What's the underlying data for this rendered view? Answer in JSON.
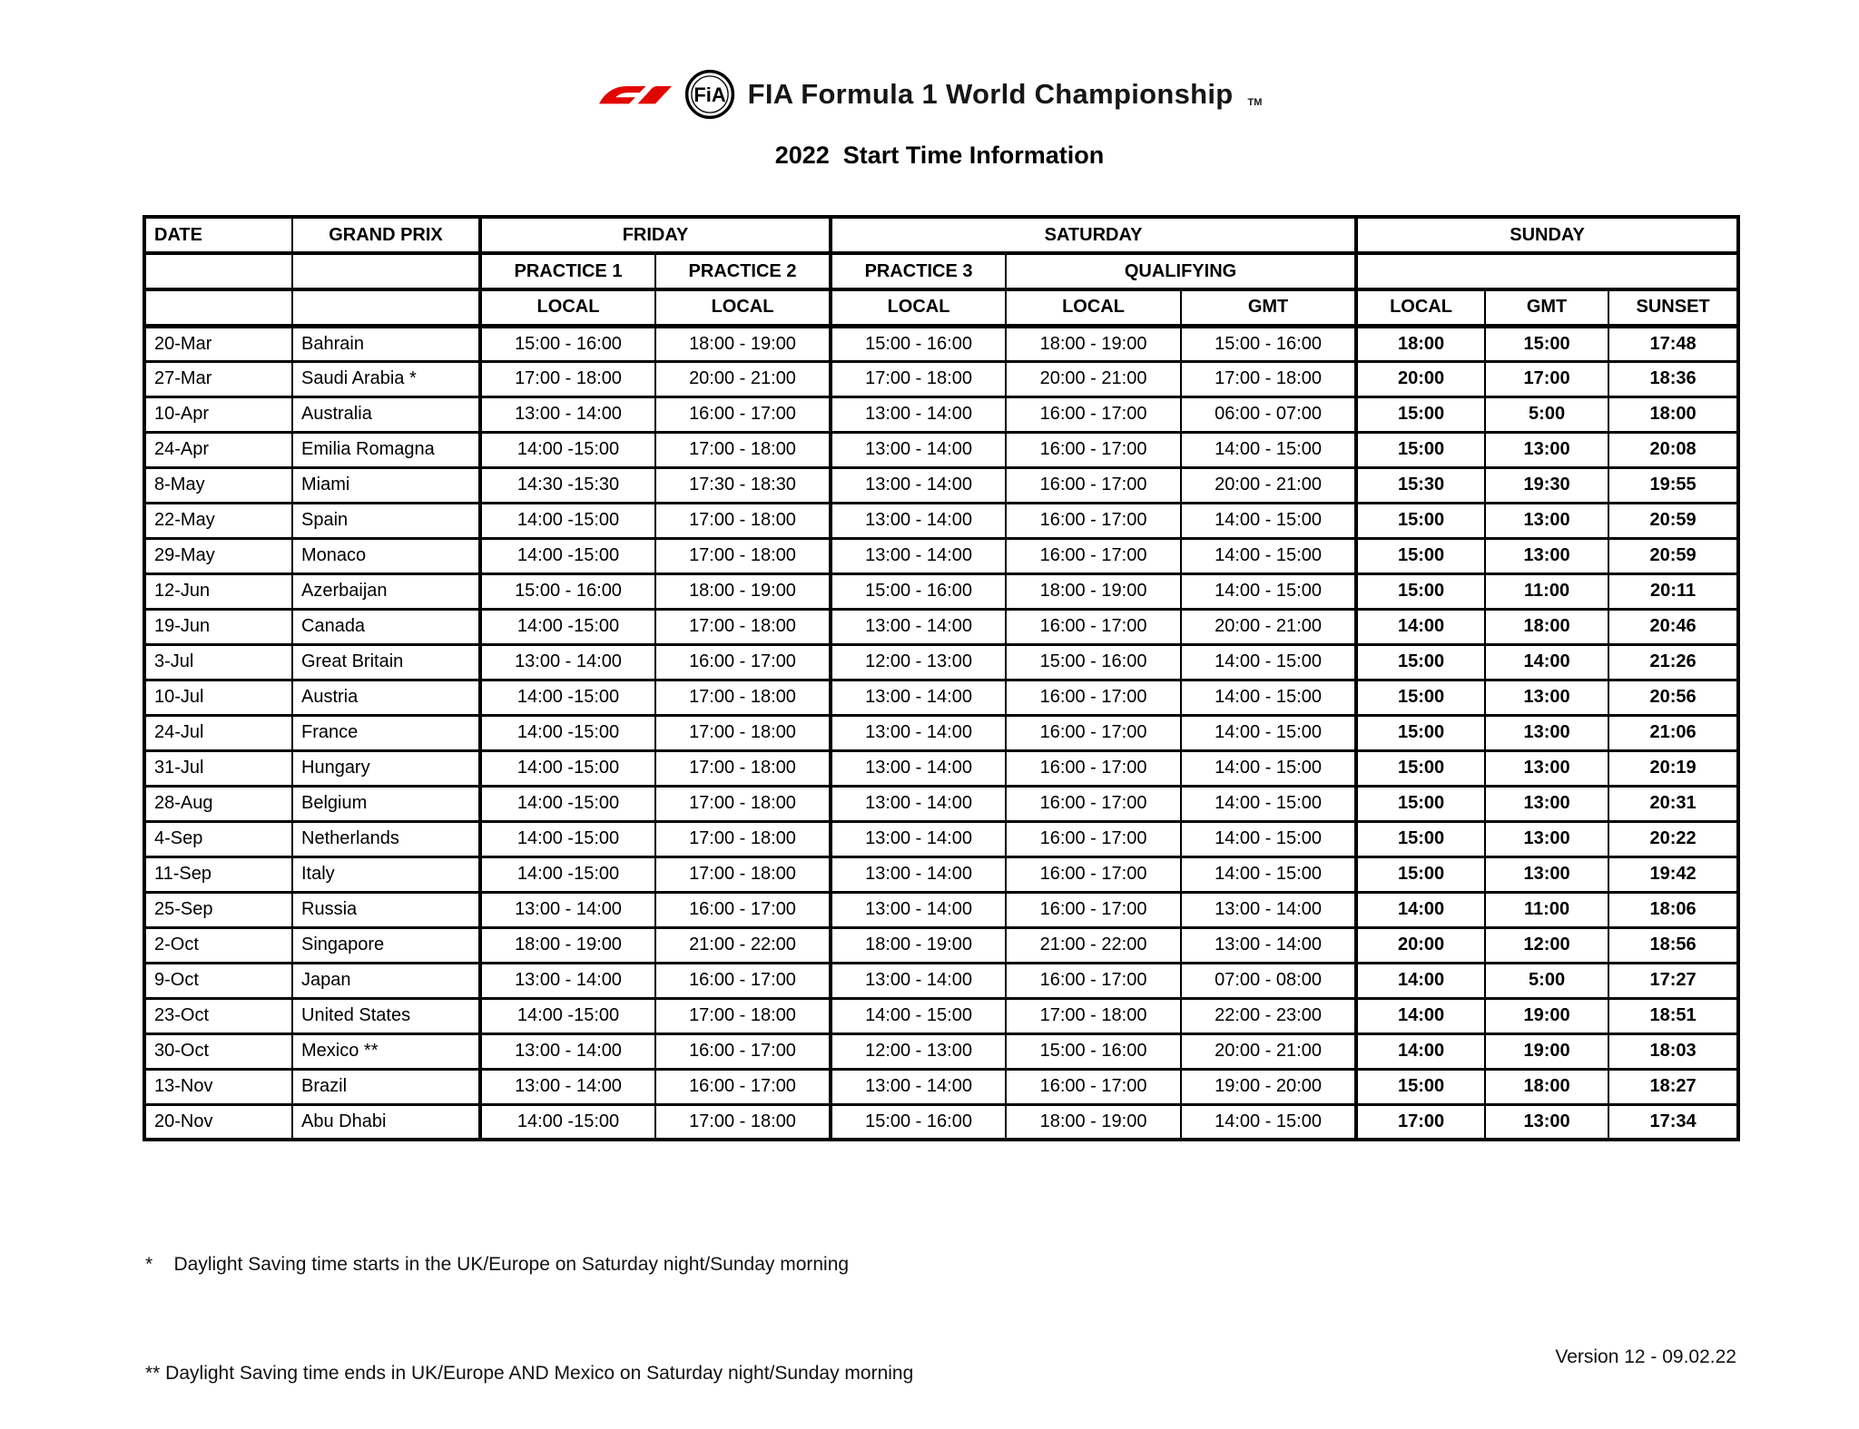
{
  "page": {
    "brand_text": "FIA Formula 1 World Championship",
    "trademark": "TM",
    "title": "2022  Start Time Information",
    "footnotes": [
      "*    Daylight Saving time starts in the UK/Europe on Saturday night/Sunday morning",
      "** Daylight Saving time ends in UK/Europe AND Mexico on Saturday night/Sunday morning"
    ],
    "version": "Version 12 - 09.02.22"
  },
  "icons": {
    "f1_logo": "f1-logo",
    "fia_emblem": "fia-emblem-icon"
  },
  "colors": {
    "f1_red": "#e10600",
    "text": "#000000",
    "background": "#ffffff"
  },
  "table": {
    "header": {
      "date": "DATE",
      "grand_prix": "GRAND PRIX",
      "friday": "FRIDAY",
      "saturday": "SATURDAY",
      "sunday": "SUNDAY",
      "practice1": "PRACTICE 1",
      "practice2": "PRACTICE 2",
      "practice3": "PRACTICE 3",
      "qualifying": "QUALIFYING",
      "local": "LOCAL",
      "gmt": "GMT",
      "sunset": "SUNSET"
    },
    "rows": [
      {
        "date": "20-Mar",
        "gp": "Bahrain",
        "p1": "15:00 - 16:00",
        "p2": "18:00 - 19:00",
        "p3": "15:00 - 16:00",
        "q_local": "18:00 - 19:00",
        "q_gmt": "15:00 - 16:00",
        "sun_local": "18:00",
        "sun_gmt": "15:00",
        "sunset": "17:48"
      },
      {
        "date": "27-Mar",
        "gp": "Saudi Arabia *",
        "p1": "17:00 - 18:00",
        "p2": "20:00 - 21:00",
        "p3": "17:00 - 18:00",
        "q_local": "20:00 - 21:00",
        "q_gmt": "17:00 - 18:00",
        "sun_local": "20:00",
        "sun_gmt": "17:00",
        "sunset": "18:36"
      },
      {
        "date": "10-Apr",
        "gp": "Australia",
        "p1": "13:00 - 14:00",
        "p2": "16:00 - 17:00",
        "p3": "13:00 - 14:00",
        "q_local": "16:00 - 17:00",
        "q_gmt": "06:00 - 07:00",
        "sun_local": "15:00",
        "sun_gmt": "5:00",
        "sunset": "18:00"
      },
      {
        "date": "24-Apr",
        "gp": "Emilia Romagna",
        "p1": "14:00 -15:00",
        "p2": "17:00 - 18:00",
        "p3": "13:00 - 14:00",
        "q_local": "16:00 - 17:00",
        "q_gmt": "14:00 - 15:00",
        "sun_local": "15:00",
        "sun_gmt": "13:00",
        "sunset": "20:08"
      },
      {
        "date": "8-May",
        "gp": "Miami",
        "p1": "14:30 -15:30",
        "p2": "17:30 - 18:30",
        "p3": "13:00 - 14:00",
        "q_local": "16:00 - 17:00",
        "q_gmt": "20:00 - 21:00",
        "sun_local": "15:30",
        "sun_gmt": "19:30",
        "sunset": "19:55"
      },
      {
        "date": "22-May",
        "gp": "Spain",
        "p1": "14:00 -15:00",
        "p2": "17:00 - 18:00",
        "p3": "13:00 - 14:00",
        "q_local": "16:00 - 17:00",
        "q_gmt": "14:00 - 15:00",
        "sun_local": "15:00",
        "sun_gmt": "13:00",
        "sunset": "20:59"
      },
      {
        "date": "29-May",
        "gp": "Monaco",
        "p1": "14:00 -15:00",
        "p2": "17:00 - 18:00",
        "p3": "13:00 - 14:00",
        "q_local": "16:00 - 17:00",
        "q_gmt": "14:00 - 15:00",
        "sun_local": "15:00",
        "sun_gmt": "13:00",
        "sunset": "20:59"
      },
      {
        "date": "12-Jun",
        "gp": "Azerbaijan",
        "p1": "15:00 - 16:00",
        "p2": "18:00 - 19:00",
        "p3": "15:00 - 16:00",
        "q_local": "18:00 - 19:00",
        "q_gmt": "14:00 - 15:00",
        "sun_local": "15:00",
        "sun_gmt": "11:00",
        "sunset": "20:11"
      },
      {
        "date": "19-Jun",
        "gp": "Canada",
        "p1": "14:00 -15:00",
        "p2": "17:00 - 18:00",
        "p3": "13:00 - 14:00",
        "q_local": "16:00 - 17:00",
        "q_gmt": "20:00 - 21:00",
        "sun_local": "14:00",
        "sun_gmt": "18:00",
        "sunset": "20:46"
      },
      {
        "date": "3-Jul",
        "gp": "Great Britain",
        "p1": "13:00 - 14:00",
        "p2": "16:00 - 17:00",
        "p3": "12:00 - 13:00",
        "q_local": "15:00 - 16:00",
        "q_gmt": "14:00 - 15:00",
        "sun_local": "15:00",
        "sun_gmt": "14:00",
        "sunset": "21:26"
      },
      {
        "date": "10-Jul",
        "gp": "Austria",
        "p1": "14:00 -15:00",
        "p2": "17:00 - 18:00",
        "p3": "13:00 - 14:00",
        "q_local": "16:00 - 17:00",
        "q_gmt": "14:00 - 15:00",
        "sun_local": "15:00",
        "sun_gmt": "13:00",
        "sunset": "20:56"
      },
      {
        "date": "24-Jul",
        "gp": "France",
        "p1": "14:00 -15:00",
        "p2": "17:00 - 18:00",
        "p3": "13:00 - 14:00",
        "q_local": "16:00 - 17:00",
        "q_gmt": "14:00 - 15:00",
        "sun_local": "15:00",
        "sun_gmt": "13:00",
        "sunset": "21:06"
      },
      {
        "date": "31-Jul",
        "gp": "Hungary",
        "p1": "14:00 -15:00",
        "p2": "17:00 - 18:00",
        "p3": "13:00 - 14:00",
        "q_local": "16:00 - 17:00",
        "q_gmt": "14:00 - 15:00",
        "sun_local": "15:00",
        "sun_gmt": "13:00",
        "sunset": "20:19"
      },
      {
        "date": "28-Aug",
        "gp": "Belgium",
        "p1": "14:00 -15:00",
        "p2": "17:00 - 18:00",
        "p3": "13:00 - 14:00",
        "q_local": "16:00 - 17:00",
        "q_gmt": "14:00 - 15:00",
        "sun_local": "15:00",
        "sun_gmt": "13:00",
        "sunset": "20:31"
      },
      {
        "date": "4-Sep",
        "gp": "Netherlands",
        "p1": "14:00 -15:00",
        "p2": "17:00 - 18:00",
        "p3": "13:00 - 14:00",
        "q_local": "16:00 - 17:00",
        "q_gmt": "14:00 - 15:00",
        "sun_local": "15:00",
        "sun_gmt": "13:00",
        "sunset": "20:22"
      },
      {
        "date": "11-Sep",
        "gp": "Italy",
        "p1": "14:00 -15:00",
        "p2": "17:00 - 18:00",
        "p3": "13:00 - 14:00",
        "q_local": "16:00 - 17:00",
        "q_gmt": "14:00 - 15:00",
        "sun_local": "15:00",
        "sun_gmt": "13:00",
        "sunset": "19:42"
      },
      {
        "date": "25-Sep",
        "gp": "Russia",
        "p1": "13:00 - 14:00",
        "p2": "16:00 - 17:00",
        "p3": "13:00 - 14:00",
        "q_local": "16:00 - 17:00",
        "q_gmt": "13:00 - 14:00",
        "sun_local": "14:00",
        "sun_gmt": "11:00",
        "sunset": "18:06"
      },
      {
        "date": "2-Oct",
        "gp": "Singapore",
        "p1": "18:00 - 19:00",
        "p2": "21:00 - 22:00",
        "p3": "18:00 - 19:00",
        "q_local": "21:00 - 22:00",
        "q_gmt": "13:00 - 14:00",
        "sun_local": "20:00",
        "sun_gmt": "12:00",
        "sunset": "18:56"
      },
      {
        "date": "9-Oct",
        "gp": "Japan",
        "p1": "13:00 - 14:00",
        "p2": "16:00 - 17:00",
        "p3": "13:00 - 14:00",
        "q_local": "16:00 - 17:00",
        "q_gmt": "07:00 - 08:00",
        "sun_local": "14:00",
        "sun_gmt": "5:00",
        "sunset": "17:27"
      },
      {
        "date": "23-Oct",
        "gp": "United States",
        "p1": "14:00 -15:00",
        "p2": "17:00 - 18:00",
        "p3": "14:00 - 15:00",
        "q_local": "17:00 - 18:00",
        "q_gmt": "22:00 - 23:00",
        "sun_local": "14:00",
        "sun_gmt": "19:00",
        "sunset": "18:51"
      },
      {
        "date": "30-Oct",
        "gp": "Mexico **",
        "p1": "13:00 - 14:00",
        "p2": "16:00 - 17:00",
        "p3": "12:00 - 13:00",
        "q_local": "15:00 - 16:00",
        "q_gmt": "20:00 - 21:00",
        "sun_local": "14:00",
        "sun_gmt": "19:00",
        "sunset": "18:03"
      },
      {
        "date": "13-Nov",
        "gp": "Brazil",
        "p1": "13:00 - 14:00",
        "p2": "16:00 - 17:00",
        "p3": "13:00 - 14:00",
        "q_local": "16:00 - 17:00",
        "q_gmt": "19:00 - 20:00",
        "sun_local": "15:00",
        "sun_gmt": "18:00",
        "sunset": "18:27"
      },
      {
        "date": "20-Nov",
        "gp": "Abu Dhabi",
        "p1": "14:00 -15:00",
        "p2": "17:00 - 18:00",
        "p3": "15:00 - 16:00",
        "q_local": "18:00 - 19:00",
        "q_gmt": "14:00 - 15:00",
        "sun_local": "17:00",
        "sun_gmt": "13:00",
        "sunset": "17:34"
      }
    ]
  }
}
